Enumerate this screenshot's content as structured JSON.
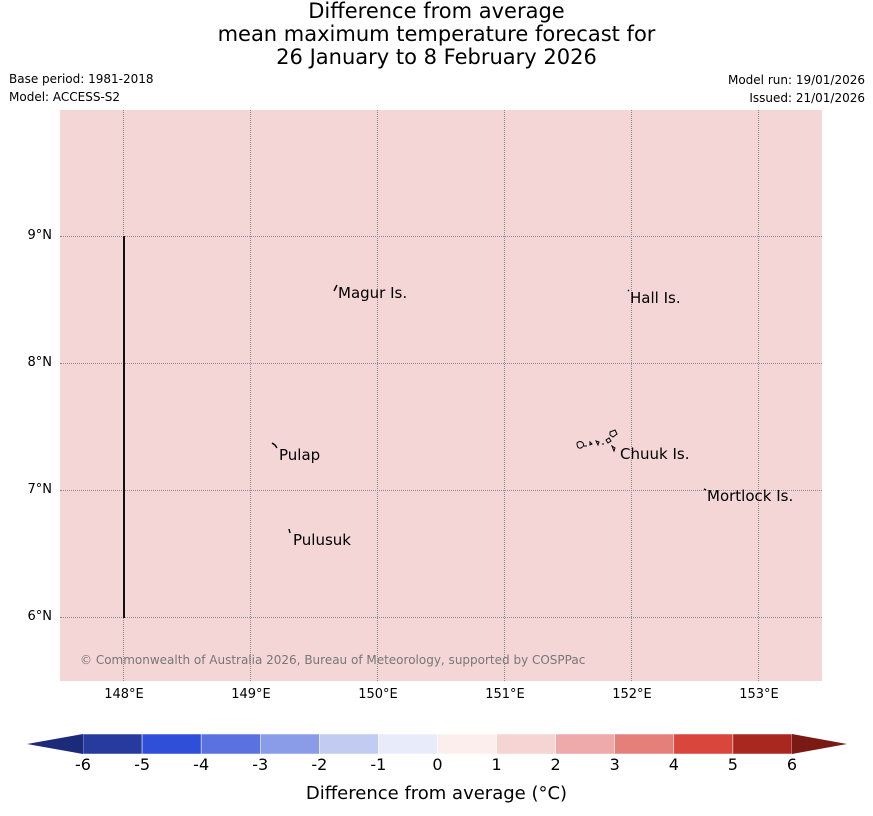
{
  "title": {
    "line1": "Difference from average",
    "line2": "mean maximum temperature forecast for",
    "line3": "26 January to 8 February 2026"
  },
  "meta": {
    "base_period": "Base period: 1981-2018",
    "model": "Model: ACCESS-S2",
    "model_run": "Model run: 19/01/2026",
    "issued": "Issued: 21/01/2026"
  },
  "map": {
    "fill_color": "#f4d6d6",
    "lat_labels": [
      "9°N",
      "8°N",
      "7°N",
      "6°N"
    ],
    "lon_labels": [
      "148°E",
      "149°E",
      "150°E",
      "151°E",
      "152°E",
      "153°E"
    ],
    "places": [
      {
        "name": "Magur Is."
      },
      {
        "name": "Hall Is."
      },
      {
        "name": "Pulap"
      },
      {
        "name": "Chuuk Is."
      },
      {
        "name": "Mortlock Is."
      },
      {
        "name": "Pulusuk"
      }
    ],
    "copyright": "© Commonwealth of Australia 2026, Bureau of Meteorology, supported by COSPPac"
  },
  "colorbar": {
    "title": "Difference from average (°C)",
    "tick_labels": [
      "-6",
      "-5",
      "-4",
      "-3",
      "-2",
      "-1",
      "0",
      "1",
      "2",
      "3",
      "4",
      "5",
      "6"
    ],
    "colors": [
      "#273a9e",
      "#2f4fd8",
      "#5a72e0",
      "#8a9ce8",
      "#c2cbf2",
      "#e8ecfa",
      "#fdeeee",
      "#f6d4d4",
      "#eeaaaa",
      "#e57f7a",
      "#d9463c",
      "#a8281f"
    ],
    "under_color": "#1c2a7a",
    "over_color": "#7a1a14"
  }
}
